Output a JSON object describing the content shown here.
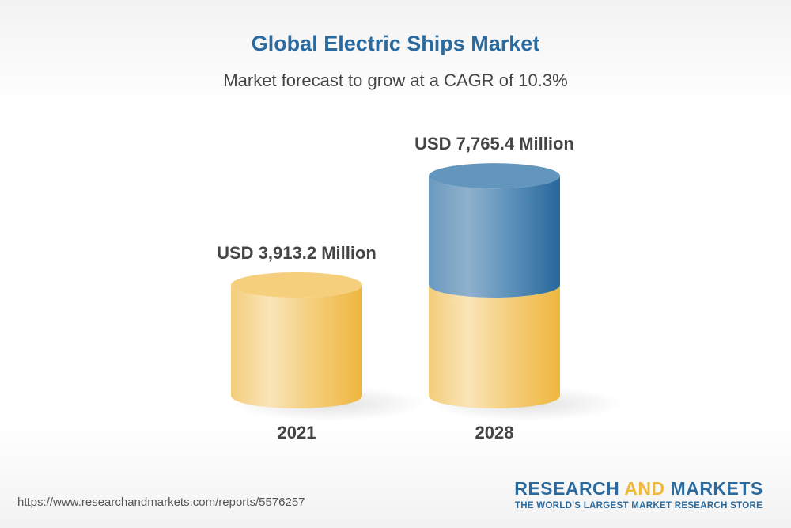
{
  "chart_data": {
    "type": "bar",
    "style": "3d-cylinder",
    "title": "Global Electric Ships Market",
    "subtitle": "Market forecast to grow at a CAGR of 10.3%",
    "categories": [
      "2021",
      "2028"
    ],
    "values": [
      3913.2,
      7765.4
    ],
    "data_labels": [
      "USD 3,913.2 Million",
      "USD 7,765.4 Million"
    ],
    "unit": "USD Million",
    "grid": false,
    "colors": {
      "base": "#f2c35a",
      "growth": "#2b6a9e",
      "title": "#2b6a9e",
      "text": "#444444"
    }
  },
  "footer": {
    "url": "https://www.researchandmarkets.com/reports/5576257",
    "logo_part1": "RESEARCH ",
    "logo_part2": "AND",
    "logo_part3": " MARKETS",
    "tagline": "THE WORLD'S LARGEST MARKET RESEARCH STORE"
  }
}
